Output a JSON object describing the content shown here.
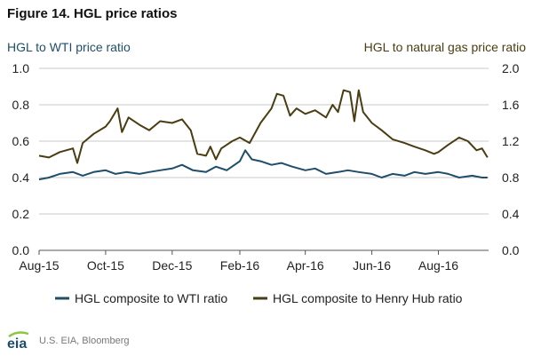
{
  "title": "Figure 14. HGL price ratios",
  "source": "U.S. EIA, Bloomberg",
  "logo_text": "eia",
  "chart_data": {
    "type": "line",
    "title": "Figure 14. HGL price ratios",
    "ylabel_left": "HGL to WTI price ratio",
    "ylabel_right": "HGL to natural gas price ratio",
    "ylim_left": [
      0,
      1.0
    ],
    "ylim_right": [
      0,
      2.0
    ],
    "y_ticks_left": [
      "0.0",
      "0.2",
      "0.4",
      "0.6",
      "0.8",
      "1.0"
    ],
    "y_ticks_right": [
      "0.0",
      "0.4",
      "0.8",
      "1.2",
      "1.6",
      "2.0"
    ],
    "x_ticks": [
      "Aug-15",
      "Oct-15",
      "Dec-15",
      "Feb-16",
      "Apr-16",
      "Jun-16",
      "Aug-16"
    ],
    "x_tick_dates": [
      "2015-08-01",
      "2015-10-01",
      "2015-12-01",
      "2016-02-01",
      "2016-04-01",
      "2016-06-01",
      "2016-08-01"
    ],
    "x_range": [
      "2015-08-01",
      "2016-09-16"
    ],
    "grid": "horizontal",
    "legend_position": "bottom",
    "series": [
      {
        "name": "HGL composite to WTI ratio",
        "axis": "left",
        "color": "#1f4e6a",
        "points": [
          [
            "2015-08-01",
            0.39
          ],
          [
            "2015-08-10",
            0.4
          ],
          [
            "2015-08-20",
            0.42
          ],
          [
            "2015-09-01",
            0.43
          ],
          [
            "2015-09-10",
            0.41
          ],
          [
            "2015-09-20",
            0.43
          ],
          [
            "2015-10-01",
            0.44
          ],
          [
            "2015-10-10",
            0.42
          ],
          [
            "2015-10-20",
            0.43
          ],
          [
            "2015-11-01",
            0.42
          ],
          [
            "2015-11-10",
            0.43
          ],
          [
            "2015-11-20",
            0.44
          ],
          [
            "2015-12-01",
            0.45
          ],
          [
            "2015-12-10",
            0.47
          ],
          [
            "2015-12-20",
            0.44
          ],
          [
            "2016-01-01",
            0.43
          ],
          [
            "2016-01-10",
            0.46
          ],
          [
            "2016-01-20",
            0.44
          ],
          [
            "2016-02-01",
            0.49
          ],
          [
            "2016-02-06",
            0.55
          ],
          [
            "2016-02-12",
            0.5
          ],
          [
            "2016-02-20",
            0.49
          ],
          [
            "2016-03-01",
            0.47
          ],
          [
            "2016-03-10",
            0.48
          ],
          [
            "2016-03-20",
            0.46
          ],
          [
            "2016-04-01",
            0.44
          ],
          [
            "2016-04-10",
            0.45
          ],
          [
            "2016-04-20",
            0.42
          ],
          [
            "2016-05-01",
            0.43
          ],
          [
            "2016-05-10",
            0.44
          ],
          [
            "2016-05-20",
            0.43
          ],
          [
            "2016-06-01",
            0.42
          ],
          [
            "2016-06-10",
            0.4
          ],
          [
            "2016-06-20",
            0.42
          ],
          [
            "2016-07-01",
            0.41
          ],
          [
            "2016-07-10",
            0.43
          ],
          [
            "2016-07-20",
            0.42
          ],
          [
            "2016-08-01",
            0.43
          ],
          [
            "2016-08-10",
            0.42
          ],
          [
            "2016-08-20",
            0.4
          ],
          [
            "2016-09-01",
            0.41
          ],
          [
            "2016-09-10",
            0.4
          ],
          [
            "2016-09-15",
            0.4
          ]
        ]
      },
      {
        "name": "HGL composite to Henry Hub ratio",
        "axis": "right",
        "color": "#4a3d12",
        "points": [
          [
            "2015-08-01",
            1.04
          ],
          [
            "2015-08-10",
            1.02
          ],
          [
            "2015-08-20",
            1.08
          ],
          [
            "2015-09-01",
            1.12
          ],
          [
            "2015-09-05",
            0.96
          ],
          [
            "2015-09-10",
            1.18
          ],
          [
            "2015-09-20",
            1.28
          ],
          [
            "2015-10-01",
            1.36
          ],
          [
            "2015-10-05",
            1.42
          ],
          [
            "2015-10-12",
            1.56
          ],
          [
            "2015-10-16",
            1.3
          ],
          [
            "2015-10-22",
            1.46
          ],
          [
            "2015-11-01",
            1.38
          ],
          [
            "2015-11-10",
            1.32
          ],
          [
            "2015-11-20",
            1.42
          ],
          [
            "2015-12-01",
            1.4
          ],
          [
            "2015-12-10",
            1.44
          ],
          [
            "2015-12-18",
            1.32
          ],
          [
            "2015-12-24",
            1.06
          ],
          [
            "2016-01-01",
            1.04
          ],
          [
            "2016-01-05",
            1.14
          ],
          [
            "2016-01-10",
            1.0
          ],
          [
            "2016-01-15",
            1.12
          ],
          [
            "2016-01-25",
            1.2
          ],
          [
            "2016-02-01",
            1.24
          ],
          [
            "2016-02-10",
            1.18
          ],
          [
            "2016-02-20",
            1.4
          ],
          [
            "2016-03-01",
            1.56
          ],
          [
            "2016-03-06",
            1.72
          ],
          [
            "2016-03-12",
            1.7
          ],
          [
            "2016-03-18",
            1.48
          ],
          [
            "2016-03-24",
            1.56
          ],
          [
            "2016-04-01",
            1.5
          ],
          [
            "2016-04-10",
            1.54
          ],
          [
            "2016-04-20",
            1.46
          ],
          [
            "2016-04-26",
            1.6
          ],
          [
            "2016-05-01",
            1.52
          ],
          [
            "2016-05-06",
            1.76
          ],
          [
            "2016-05-12",
            1.74
          ],
          [
            "2016-05-16",
            1.42
          ],
          [
            "2016-05-20",
            1.76
          ],
          [
            "2016-05-24",
            1.52
          ],
          [
            "2016-06-01",
            1.4
          ],
          [
            "2016-06-10",
            1.32
          ],
          [
            "2016-06-20",
            1.22
          ],
          [
            "2016-07-01",
            1.18
          ],
          [
            "2016-07-10",
            1.14
          ],
          [
            "2016-07-20",
            1.1
          ],
          [
            "2016-07-28",
            1.06
          ],
          [
            "2016-08-01",
            1.08
          ],
          [
            "2016-08-10",
            1.16
          ],
          [
            "2016-08-20",
            1.24
          ],
          [
            "2016-08-28",
            1.2
          ],
          [
            "2016-09-05",
            1.1
          ],
          [
            "2016-09-10",
            1.12
          ],
          [
            "2016-09-15",
            1.02
          ]
        ]
      }
    ]
  }
}
